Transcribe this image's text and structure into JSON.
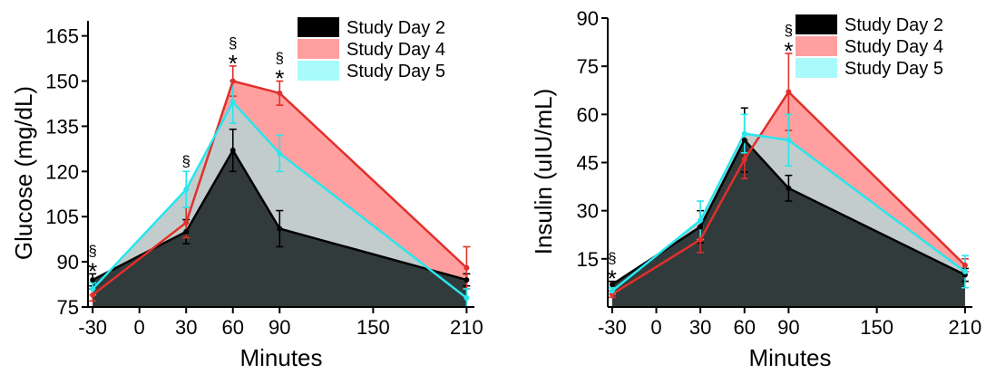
{
  "chart_data": [
    {
      "type": "area",
      "xlabel": "Minutes",
      "ylabel": "Glucose (mg/dL)",
      "ylim": [
        75,
        170
      ],
      "yticks": [
        75,
        90,
        105,
        120,
        135,
        150,
        165
      ],
      "xticks": [
        -30,
        0,
        30,
        60,
        90,
        150,
        210
      ],
      "x": [
        -30,
        30,
        60,
        90,
        210
      ],
      "series": [
        {
          "name": "Study Day 2",
          "color": "#000000",
          "values": [
            84,
            100,
            127,
            101,
            84
          ],
          "err": [
            2,
            4,
            7,
            6,
            2
          ]
        },
        {
          "name": "Study Day 4",
          "color": "#ff9f9f",
          "line_color": "#e0302b",
          "values": [
            79,
            103,
            150,
            146,
            88
          ],
          "err": [
            2,
            5,
            5,
            4,
            7
          ]
        },
        {
          "name": "Study Day 5",
          "color": "#a9fafa",
          "line_color": "#27e6ee",
          "values": [
            81,
            114,
            143,
            126,
            78
          ],
          "err": [
            2,
            6,
            7,
            6,
            3
          ]
        }
      ],
      "annotations": [
        {
          "x": -30,
          "symbols": [
            "§",
            "*"
          ]
        },
        {
          "x": 30,
          "symbols": [
            "§"
          ]
        },
        {
          "x": 60,
          "symbols": [
            "§",
            "*"
          ]
        },
        {
          "x": 90,
          "symbols": [
            "§",
            "*"
          ]
        }
      ],
      "legend": "top-right",
      "grid": false
    },
    {
      "type": "area",
      "xlabel": "Minutes",
      "ylabel": "Insulin (uIU/mL)",
      "ylim": [
        0,
        90
      ],
      "yticks": [
        15,
        30,
        45,
        60,
        75,
        90
      ],
      "xticks": [
        -30,
        0,
        30,
        60,
        90,
        150,
        210
      ],
      "x": [
        -30,
        30,
        60,
        90,
        210
      ],
      "series": [
        {
          "name": "Study Day 2",
          "color": "#000000",
          "values": [
            7,
            25,
            52,
            37,
            10
          ],
          "err": [
            1,
            5,
            10,
            4,
            2
          ]
        },
        {
          "name": "Study Day 4",
          "color": "#ff9f9f",
          "line_color": "#e0302b",
          "values": [
            4,
            21,
            46,
            67,
            13
          ],
          "err": [
            1,
            4,
            6,
            12,
            2
          ]
        },
        {
          "name": "Study Day 5",
          "color": "#a9fafa",
          "line_color": "#27e6ee",
          "values": [
            5,
            27,
            54,
            52,
            11
          ],
          "err": [
            1,
            6,
            6,
            8,
            5
          ]
        }
      ],
      "annotations": [
        {
          "x": -30,
          "symbols": [
            "§",
            "*"
          ]
        },
        {
          "x": 90,
          "symbols": [
            "§",
            "*"
          ]
        }
      ],
      "legend": "top-right",
      "grid": false
    }
  ]
}
